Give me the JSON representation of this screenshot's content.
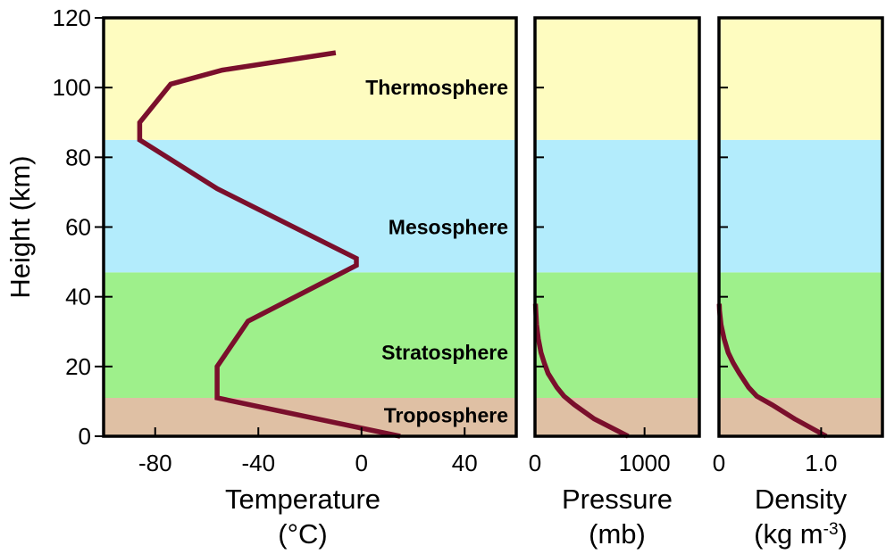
{
  "chart_data": {
    "type": "line",
    "y_axis": {
      "label": "Height (km)",
      "range": [
        0,
        120
      ],
      "ticks": [
        0,
        20,
        40,
        60,
        80,
        100,
        120
      ]
    },
    "layers": [
      {
        "name": "Troposphere",
        "bottom": 0,
        "top": 11,
        "color": "#dfc0a4"
      },
      {
        "name": "Stratosphere",
        "bottom": 11,
        "top": 47,
        "color": "#9ef08b"
      },
      {
        "name": "Mesosphere",
        "bottom": 47,
        "top": 85,
        "color": "#b3ecfc"
      },
      {
        "name": "Thermosphere",
        "bottom": 85,
        "top": 120,
        "color": "#fefcc0"
      }
    ],
    "line_color": "#7a0f2c",
    "panels": [
      {
        "id": "temperature",
        "xlabel": "Temperature",
        "xunit": "(°C)",
        "xlim": [
          -100,
          60
        ],
        "xticks": [
          -80,
          -40,
          0,
          40
        ],
        "xtick_labels": [
          "-80",
          "-40",
          "0",
          "40"
        ],
        "points": [
          [
            15,
            0
          ],
          [
            -56,
            11
          ],
          [
            -56,
            20
          ],
          [
            -44,
            33
          ],
          [
            -2,
            49
          ],
          [
            -2,
            51
          ],
          [
            -56,
            71
          ],
          [
            -86,
            85
          ],
          [
            -86,
            90
          ],
          [
            -74,
            101
          ],
          [
            -54,
            105
          ],
          [
            -10,
            110
          ]
        ]
      },
      {
        "id": "pressure",
        "xlabel": "Pressure",
        "xunit": "(mb)",
        "xlim": [
          0,
          1500
        ],
        "xticks": [
          0,
          1000
        ],
        "xtick_labels": [
          "0",
          "1000"
        ],
        "points": [
          [
            850,
            0
          ],
          [
            540,
            5
          ],
          [
            360,
            9
          ],
          [
            265,
            11.5
          ],
          [
            200,
            14
          ],
          [
            120,
            18
          ],
          [
            85,
            21
          ],
          [
            55,
            24
          ],
          [
            30,
            28
          ],
          [
            15,
            32
          ],
          [
            7,
            36
          ],
          [
            4,
            38
          ]
        ]
      },
      {
        "id": "density",
        "xlabel": "Density",
        "xunit": "(kg m",
        "xunit_sup": "-3",
        "xunit_close": ")",
        "xlim": [
          0,
          1.6
        ],
        "xticks": [
          0,
          1.0
        ],
        "xtick_labels": [
          "0",
          "1.0"
        ],
        "points": [
          [
            1.05,
            0
          ],
          [
            0.74,
            5
          ],
          [
            0.52,
            9
          ],
          [
            0.37,
            11.5
          ],
          [
            0.29,
            14
          ],
          [
            0.2,
            18
          ],
          [
            0.14,
            21
          ],
          [
            0.09,
            24
          ],
          [
            0.05,
            28
          ],
          [
            0.02,
            32
          ],
          [
            0.005,
            36
          ],
          [
            0.003,
            38
          ]
        ]
      }
    ]
  }
}
